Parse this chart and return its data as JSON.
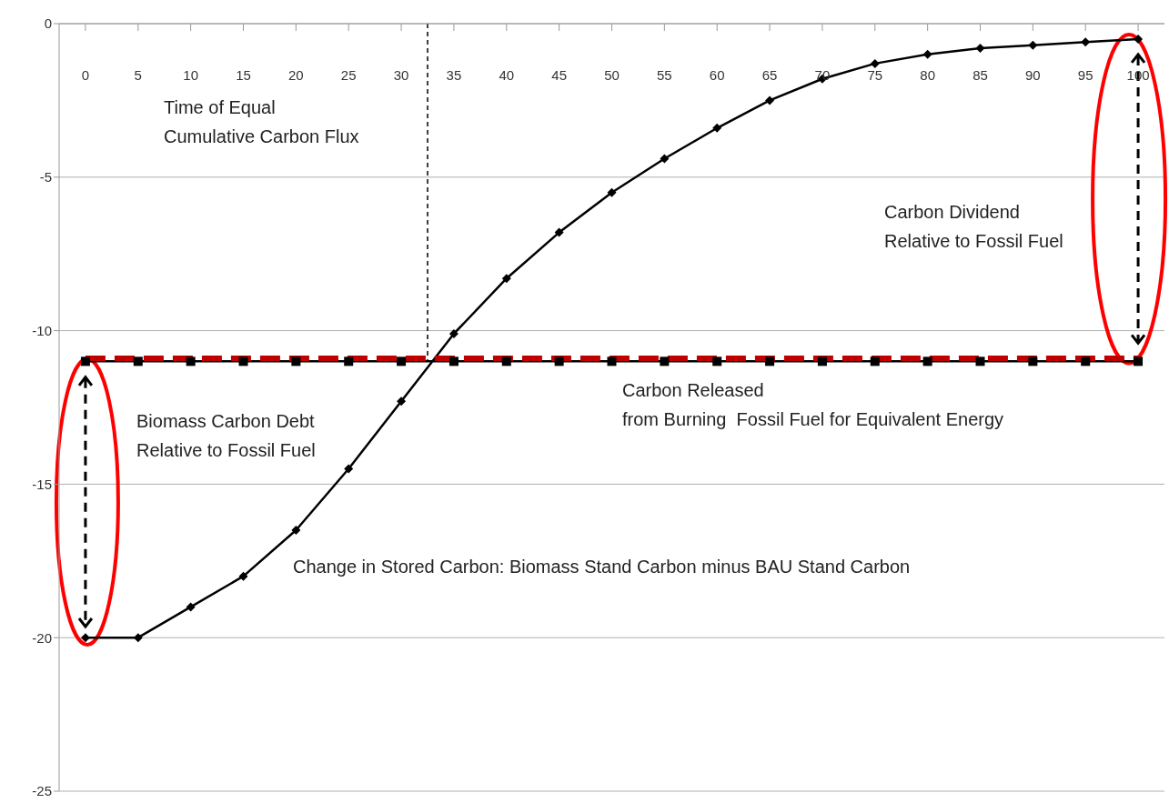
{
  "chart_data": {
    "type": "line",
    "x": [
      0,
      5,
      10,
      15,
      20,
      25,
      30,
      35,
      40,
      45,
      50,
      55,
      60,
      65,
      70,
      75,
      80,
      85,
      90,
      95,
      100
    ],
    "series": [
      {
        "color": "#000000",
        "marker": "diamond",
        "line_style": "solid",
        "values": [
          -20,
          -20,
          -19.0,
          -18.0,
          -16.5,
          -14.5,
          -12.3,
          -10.1,
          -8.3,
          -6.8,
          -5.5,
          -4.4,
          -3.4,
          -2.5,
          -1.8,
          -1.3,
          -1.0,
          -0.8,
          -0.7,
          -0.6,
          -0.5
        ]
      },
      {
        "color": "#000000",
        "marker": "square",
        "line_style": "solid",
        "values": [
          -11,
          -11,
          -11,
          -11,
          -11,
          -11,
          -11,
          -11,
          -11,
          -11,
          -11,
          -11,
          -11,
          -11,
          -11,
          -11,
          -11,
          -11,
          -11,
          -11,
          -11
        ]
      },
      {
        "color": "#c00000",
        "marker": "none",
        "line_style": "dashed",
        "values": [
          -10.9,
          -10.9,
          -10.9,
          -10.9,
          -10.9,
          -10.9,
          -10.9,
          -10.9,
          -10.9,
          -10.9,
          -10.9,
          -10.9,
          -10.9,
          -10.9,
          -10.9,
          -10.9,
          -10.9,
          -10.9,
          -10.9,
          -10.9,
          -10.9
        ]
      }
    ],
    "xlim": [
      -2.5,
      102.5
    ],
    "xticks": [
      0,
      5,
      10,
      15,
      20,
      25,
      30,
      35,
      40,
      45,
      50,
      55,
      60,
      65,
      70,
      75,
      80,
      85,
      90,
      95,
      100
    ],
    "ylim": [
      -25,
      0
    ],
    "yticks": [
      -25,
      -20,
      -15,
      -10,
      -5,
      0
    ],
    "grid": "y",
    "legend": false,
    "ref_lines": [
      {
        "axis": "x",
        "value": 32.5,
        "color": "#000000",
        "line_style": "dashed"
      }
    ],
    "annotations": [
      "Time of Equal\nCumulative Carbon Flux",
      "Carbon Dividend\nRelative to Fossil Fuel",
      "Biomass Carbon Debt\nRelative to Fossil Fuel",
      "Carbon Released\nfrom Burning  Fossil Fuel for Equivalent Energy",
      "Change in Stored Carbon: Biomass Stand Carbon minus BAU Stand Carbon"
    ]
  }
}
